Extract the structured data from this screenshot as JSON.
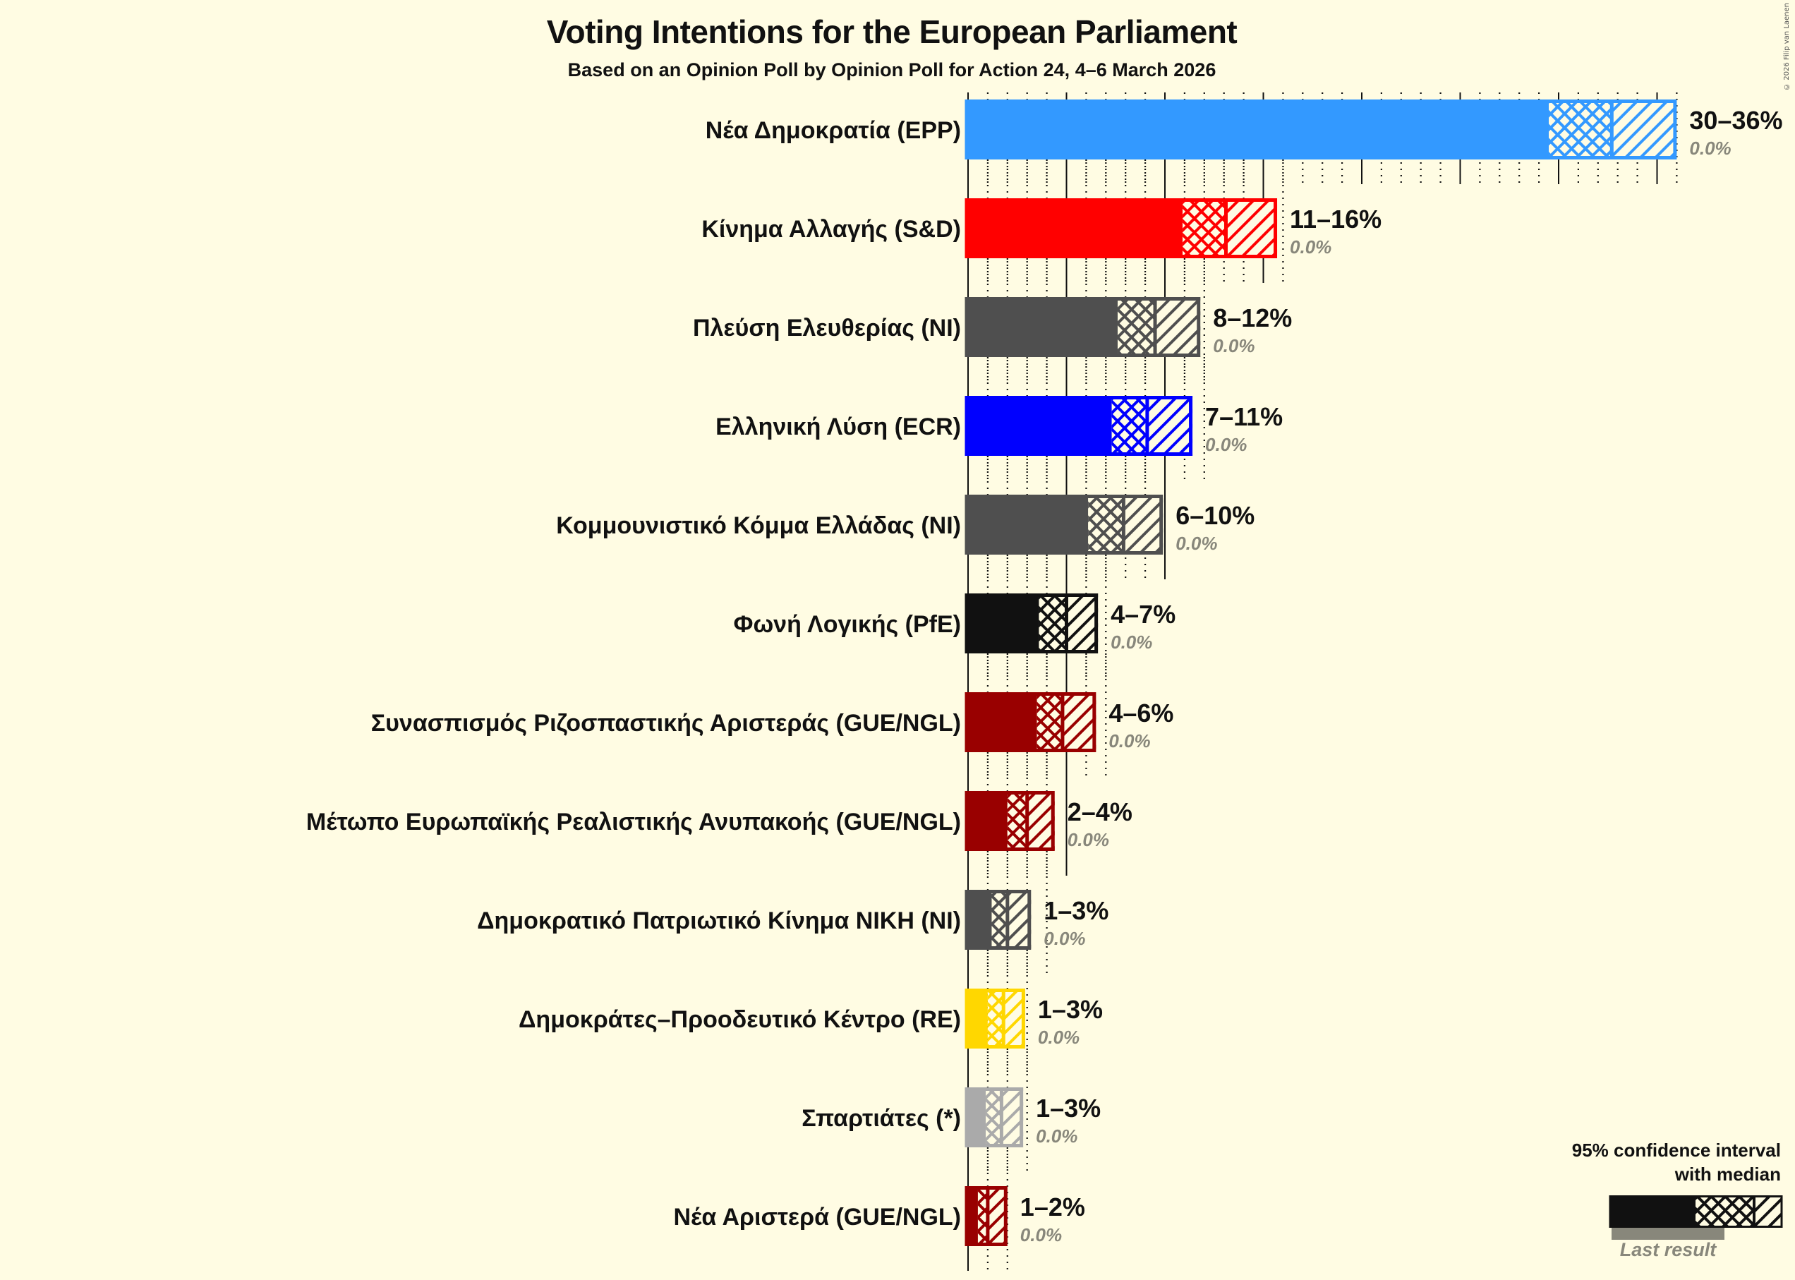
{
  "header": {
    "title": "Voting Intentions for the European Parliament",
    "subtitle": "Based on an Opinion Poll by Opinion Poll for Action 24, 4–6 March 2026",
    "copyright": "© 2026 Filip van Laenen"
  },
  "legend": {
    "title_line1": "95% confidence interval",
    "title_line2": "with median",
    "last_result": "Last result"
  },
  "chart_data": {
    "type": "bar",
    "orientation": "horizontal",
    "title": "Voting Intentions for the European Parliament",
    "subtitle": "Based on an Opinion Poll by Opinion Poll for Action 24, 4–6 March 2026",
    "xlabel": "",
    "ylabel": "",
    "xlim": [
      0,
      36
    ],
    "grid": {
      "major_step": 5,
      "minor_step": 1
    },
    "legend": [
      "95% confidence interval with median",
      "Last result"
    ],
    "categories": [
      "Νέα Δημοκρατία (EPP)",
      "Κίνημα Αλλαγής (S&D)",
      "Πλεύση Ελευθερίας (NI)",
      "Ελληνική Λύση (ECR)",
      "Κομμουνιστικό Κόμμα Ελλάδας (NI)",
      "Φωνή Λογικής (PfE)",
      "Συνασπισμός Ριζοσπαστικής Αριστεράς (GUE/NGL)",
      "Μέτωπο Ευρωπαϊκής Ρεαλιστικής Ανυπακοής (GUE/NGL)",
      "Δημοκρατικό Πατριωτικό Κίνημα ΝΙΚΗ (NI)",
      "Δημοκράτες–Προοδευτικό Κέντρο (RE)",
      "Σπαρτιάτες (*)",
      "Νέα Αριστερά (GUE/NGL)"
    ],
    "series": [
      {
        "name": "CI 95% low",
        "values": [
          29.5,
          10.9,
          7.6,
          7.3,
          6.1,
          3.6,
          3.5,
          2.0,
          1.2,
          1.0,
          0.9,
          0.5
        ]
      },
      {
        "name": "Median",
        "values": [
          32.7,
          13.1,
          9.5,
          9.1,
          7.9,
          5.0,
          4.8,
          3.0,
          2.0,
          1.8,
          1.7,
          1.0
        ]
      },
      {
        "name": "CI 95% high",
        "values": [
          36.0,
          15.7,
          11.8,
          11.4,
          9.9,
          6.6,
          6.5,
          4.4,
          3.2,
          2.9,
          2.8,
          2.0
        ]
      },
      {
        "name": "Last result",
        "values": [
          0.0,
          0.0,
          0.0,
          0.0,
          0.0,
          0.0,
          0.0,
          0.0,
          0.0,
          0.0,
          0.0,
          0.0
        ]
      }
    ],
    "range_labels": [
      "30–36%",
      "11–16%",
      "8–12%",
      "7–11%",
      "6–10%",
      "4–7%",
      "4–6%",
      "2–4%",
      "1–3%",
      "1–3%",
      "1–3%",
      "1–2%"
    ],
    "last_labels": [
      "0.0%",
      "0.0%",
      "0.0%",
      "0.0%",
      "0.0%",
      "0.0%",
      "0.0%",
      "0.0%",
      "0.0%",
      "0.0%",
      "0.0%",
      "0.0%"
    ],
    "colors": [
      "#3399FF",
      "#FF0000",
      "#4F4F4F",
      "#0000FF",
      "#4F4F4F",
      "#111111",
      "#990000",
      "#990000",
      "#4F4F4F",
      "#FFD700",
      "#AAAAAA",
      "#990000"
    ]
  }
}
